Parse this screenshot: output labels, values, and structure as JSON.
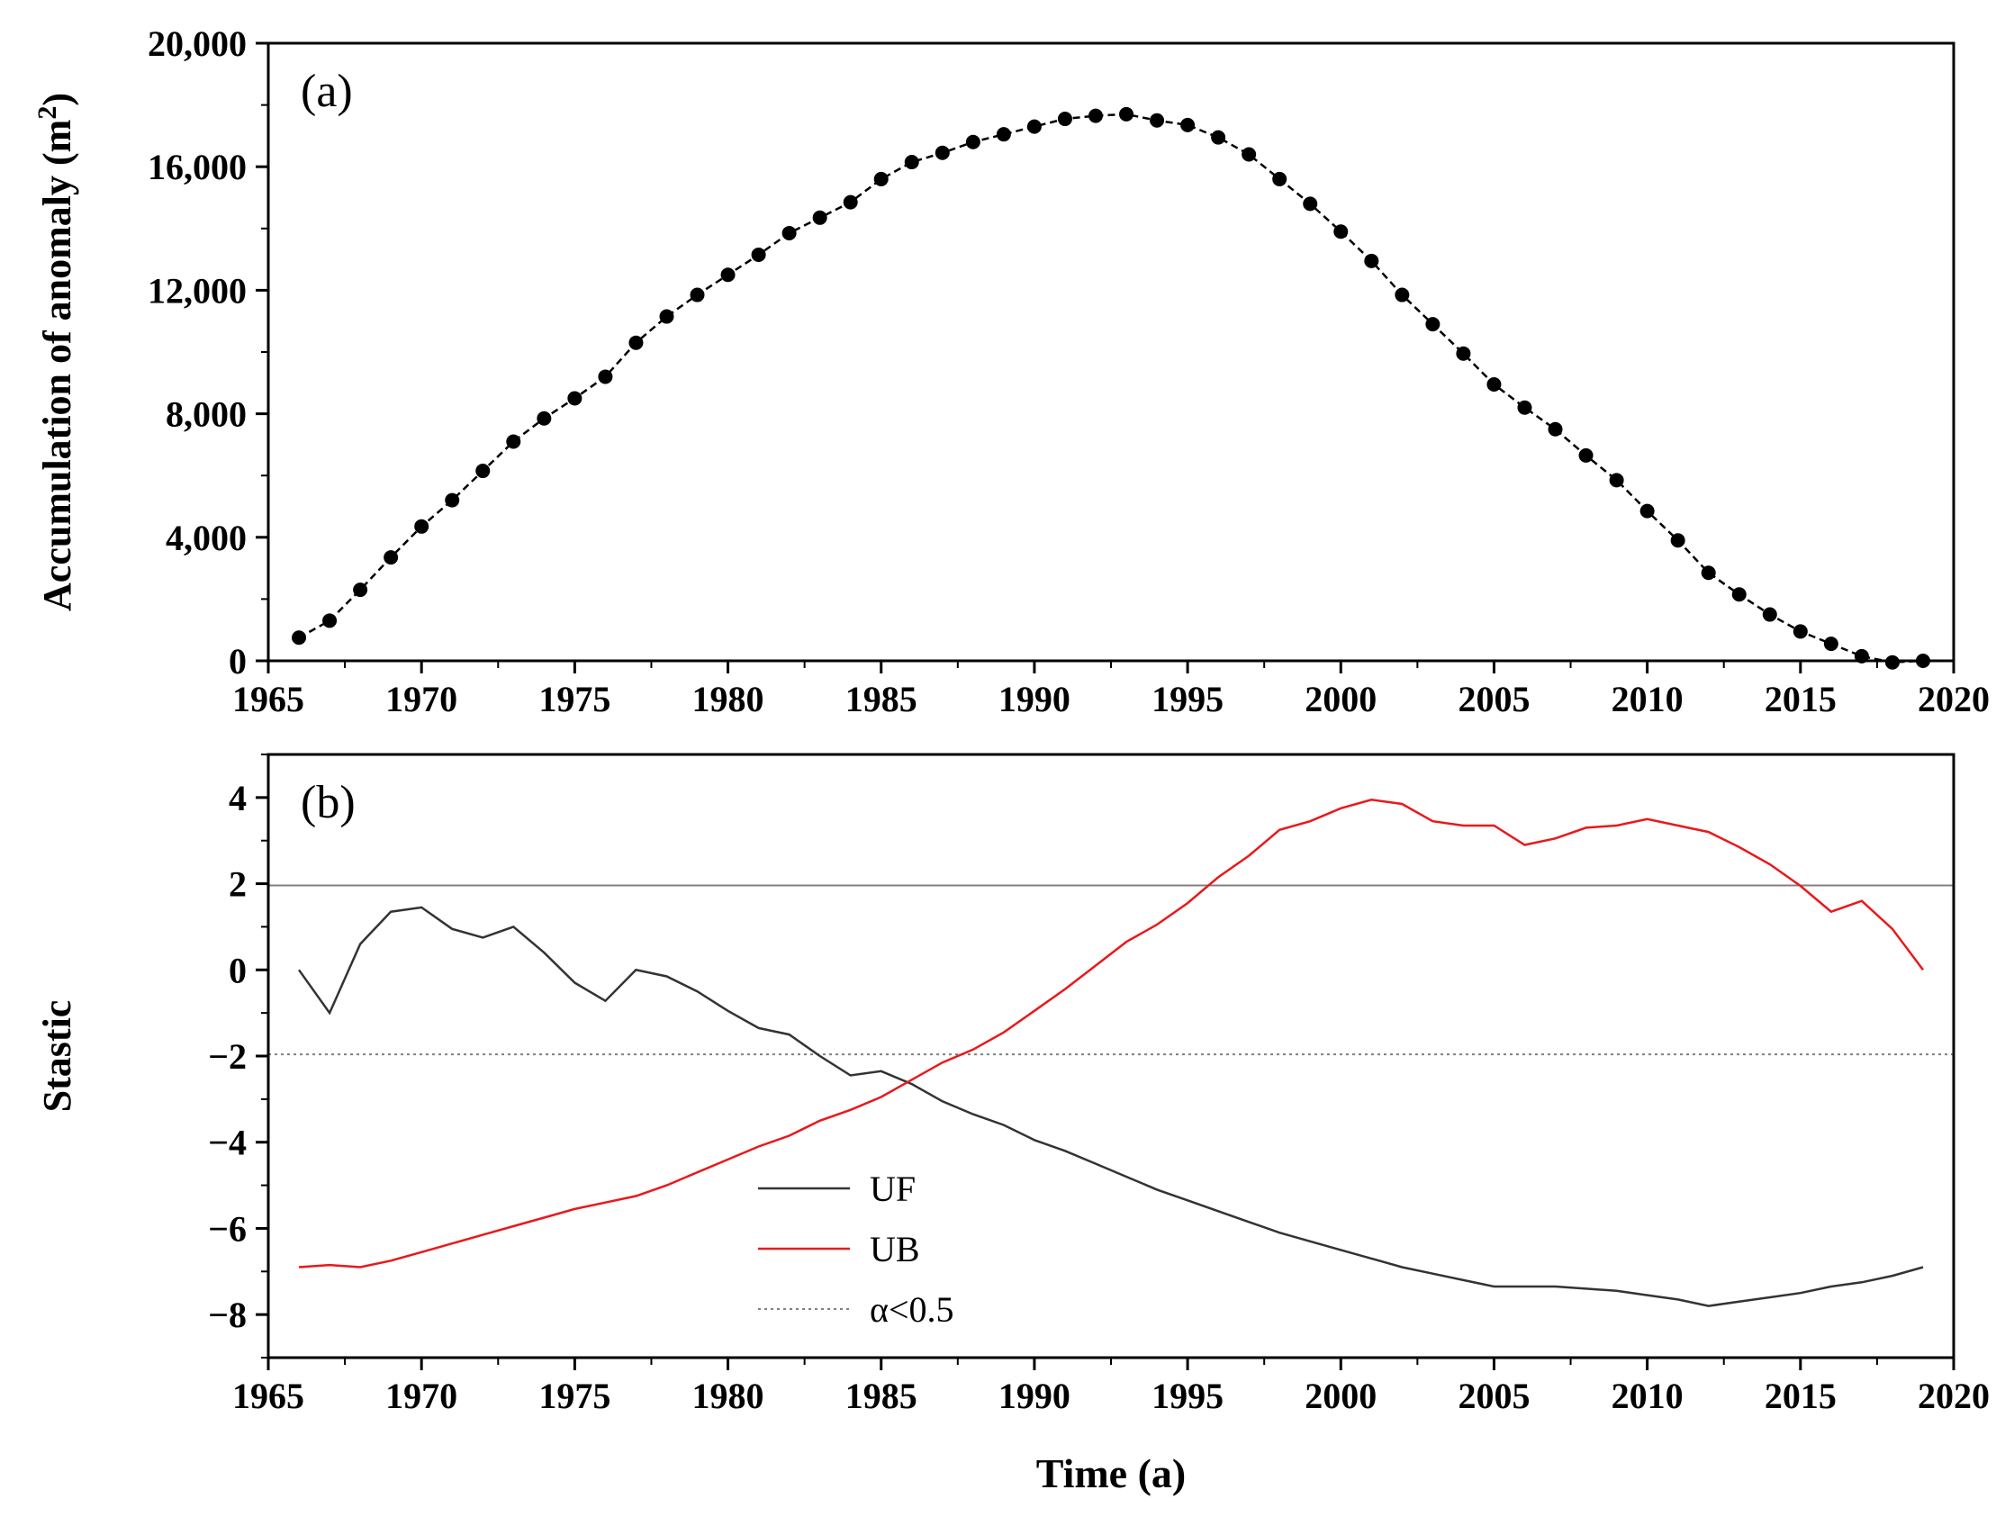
{
  "chart_data": [
    {
      "type": "line",
      "panel_label": "(a)",
      "ylabel_main": "Accumulation of anomaly (m",
      "ylabel_sup": "2",
      "ylabel_close": ")",
      "xlabel": "",
      "xlim": [
        1965,
        2020
      ],
      "ylim": [
        0,
        20000
      ],
      "xticks": [
        1965,
        1970,
        1975,
        1980,
        1985,
        1990,
        1995,
        2000,
        2005,
        2010,
        2015,
        2020
      ],
      "yticks": [
        0,
        4000,
        8000,
        12000,
        16000,
        20000
      ],
      "ytick_labels": [
        "0",
        "4,000",
        "8,000",
        "12,000",
        "16,000",
        "20,000"
      ],
      "x": [
        1966,
        1967,
        1968,
        1969,
        1970,
        1971,
        1972,
        1973,
        1974,
        1975,
        1976,
        1977,
        1978,
        1979,
        1980,
        1981,
        1982,
        1983,
        1984,
        1985,
        1986,
        1987,
        1988,
        1989,
        1990,
        1991,
        1992,
        1993,
        1994,
        1995,
        1996,
        1997,
        1998,
        1999,
        2000,
        2001,
        2002,
        2003,
        2004,
        2005,
        2006,
        2007,
        2008,
        2009,
        2010,
        2011,
        2012,
        2013,
        2014,
        2015,
        2016,
        2017,
        2018,
        2019
      ],
      "series": [
        {
          "name": "Accumulation of anomaly",
          "color": "#000000",
          "style": "dashed-with-markers",
          "values": [
            750,
            1300,
            2300,
            3350,
            4350,
            5200,
            6150,
            7100,
            7850,
            8500,
            9200,
            10300,
            11150,
            11850,
            12500,
            13150,
            13850,
            14350,
            14850,
            15600,
            16150,
            16450,
            16800,
            17050,
            17300,
            17550,
            17650,
            17700,
            17500,
            17350,
            16950,
            16400,
            15600,
            14800,
            13900,
            12950,
            11850,
            10900,
            9950,
            8950,
            8200,
            7500,
            6650,
            5850,
            4850,
            3900,
            2850,
            2150,
            1500,
            950,
            550,
            150,
            -50,
            0
          ]
        }
      ]
    },
    {
      "type": "line",
      "panel_label": "(b)",
      "ylabel": "Stastic",
      "xlabel": "Time (a)",
      "xlim": [
        1965,
        2020
      ],
      "ylim": [
        -9,
        5
      ],
      "xticks": [
        1965,
        1970,
        1975,
        1980,
        1985,
        1990,
        1995,
        2000,
        2005,
        2010,
        2015,
        2020
      ],
      "yticks": [
        -8,
        -6,
        -4,
        -2,
        0,
        2,
        4
      ],
      "ytick_labels": [
        "−8",
        "−6",
        "−4",
        "−2",
        "0",
        "2",
        "4"
      ],
      "x": [
        1966,
        1967,
        1968,
        1969,
        1970,
        1971,
        1972,
        1973,
        1974,
        1975,
        1976,
        1977,
        1978,
        1979,
        1980,
        1981,
        1982,
        1983,
        1984,
        1985,
        1986,
        1987,
        1988,
        1989,
        1990,
        1991,
        1992,
        1993,
        1994,
        1995,
        1996,
        1997,
        1998,
        1999,
        2000,
        2001,
        2002,
        2003,
        2004,
        2005,
        2006,
        2007,
        2008,
        2009,
        2010,
        2011,
        2012,
        2013,
        2014,
        2015,
        2016,
        2017,
        2018,
        2019
      ],
      "series": [
        {
          "name": "UF",
          "color": "#333333",
          "values": [
            0,
            -1.0,
            0.6,
            1.35,
            1.45,
            0.95,
            0.75,
            1.0,
            0.4,
            -0.3,
            -0.72,
            0.0,
            -0.15,
            -0.5,
            -0.95,
            -1.35,
            -1.5,
            -2.0,
            -2.45,
            -2.35,
            -2.65,
            -3.05,
            -3.35,
            -3.6,
            -3.95,
            -4.2,
            -4.5,
            -4.8,
            -5.1,
            -5.35,
            -5.6,
            -5.85,
            -6.1,
            -6.3,
            -6.5,
            -6.7,
            -6.9,
            -7.05,
            -7.2,
            -7.35,
            -7.35,
            -7.35,
            -7.4,
            -7.45,
            -7.55,
            -7.65,
            -7.8,
            -7.7,
            -7.6,
            -7.5,
            -7.35,
            -7.25,
            -7.1,
            -6.9
          ]
        },
        {
          "name": "UB",
          "color": "#e8191c",
          "values": [
            -6.9,
            -6.85,
            -6.9,
            -6.75,
            -6.55,
            -6.35,
            -6.15,
            -5.95,
            -5.75,
            -5.55,
            -5.4,
            -5.25,
            -5.0,
            -4.7,
            -4.4,
            -4.1,
            -3.85,
            -3.5,
            -3.25,
            -2.95,
            -2.55,
            -2.15,
            -1.85,
            -1.45,
            -0.95,
            -0.45,
            0.1,
            0.65,
            1.05,
            1.55,
            2.15,
            2.65,
            3.25,
            3.45,
            3.75,
            3.95,
            3.85,
            3.45,
            3.35,
            3.35,
            2.9,
            3.05,
            3.3,
            3.35,
            3.5,
            3.35,
            3.2,
            2.85,
            2.45,
            1.95,
            1.35,
            1.6,
            0.95,
            0.0
          ]
        }
      ],
      "reference_lines": [
        {
          "name": "α<0.5",
          "y": 1.96,
          "color": "#808080",
          "style": "solid-thin"
        },
        {
          "name": "α<0.5",
          "y": -1.96,
          "color": "#808080",
          "style": "dotted"
        }
      ],
      "legend": {
        "placement": "lower-center",
        "entries": [
          {
            "label": "UF",
            "color": "#333333",
            "style": "solid"
          },
          {
            "label": "UB",
            "color": "#e8191c",
            "style": "solid"
          },
          {
            "label": "α<0.5",
            "color": "#808080",
            "style": "dotted"
          }
        ]
      }
    }
  ]
}
